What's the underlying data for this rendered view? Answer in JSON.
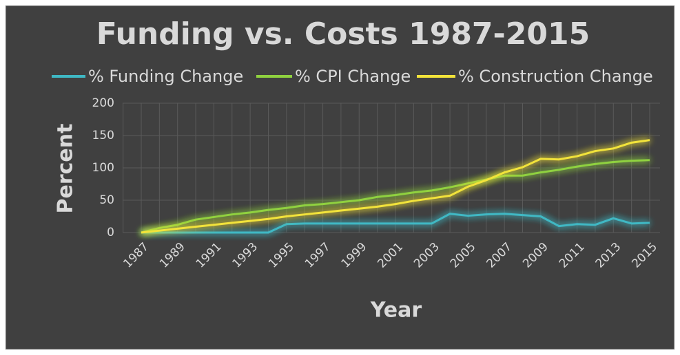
{
  "chart_data": {
    "type": "line",
    "title": "Funding vs. Costs 1987-2015",
    "xlabel": "Year",
    "ylabel": "Percent",
    "categories": [
      "1987",
      null,
      "1989",
      null,
      "1991",
      null,
      "1993",
      null,
      "1995",
      null,
      "1997",
      null,
      "1999",
      null,
      "2001",
      null,
      "2003",
      null,
      "2005",
      null,
      "2007",
      null,
      "2009",
      null,
      "2011",
      null,
      "2013",
      null,
      "2015"
    ],
    "series": [
      {
        "name": "% Funding Change",
        "color": "#3fb8c4",
        "values": [
          0,
          0,
          0,
          0,
          0,
          0,
          0,
          0,
          13,
          14,
          14,
          14,
          14,
          14,
          14,
          14,
          14,
          29,
          26,
          28,
          29,
          27,
          25,
          10,
          13,
          12,
          22,
          14,
          15
        ]
      },
      {
        "name": "% CPI Change",
        "color": "#8fd13f",
        "values": [
          0,
          7,
          12,
          20,
          24,
          28,
          31,
          35,
          38,
          42,
          44,
          47,
          50,
          55,
          58,
          62,
          65,
          70,
          76,
          82,
          88,
          88,
          93,
          97,
          102,
          106,
          109,
          111,
          112
        ]
      },
      {
        "name": "% Construction Change",
        "color": "#f2e33a",
        "values": [
          0,
          3,
          6,
          9,
          12,
          15,
          18,
          21,
          25,
          28,
          31,
          34,
          37,
          40,
          44,
          49,
          53,
          57,
          71,
          81,
          93,
          101,
          114,
          113,
          118,
          126,
          130,
          139,
          143
        ]
      }
    ],
    "ylim": [
      0,
      200
    ],
    "yticks": [
      0,
      50,
      100,
      150,
      200
    ],
    "grid": true,
    "legend": "top"
  }
}
